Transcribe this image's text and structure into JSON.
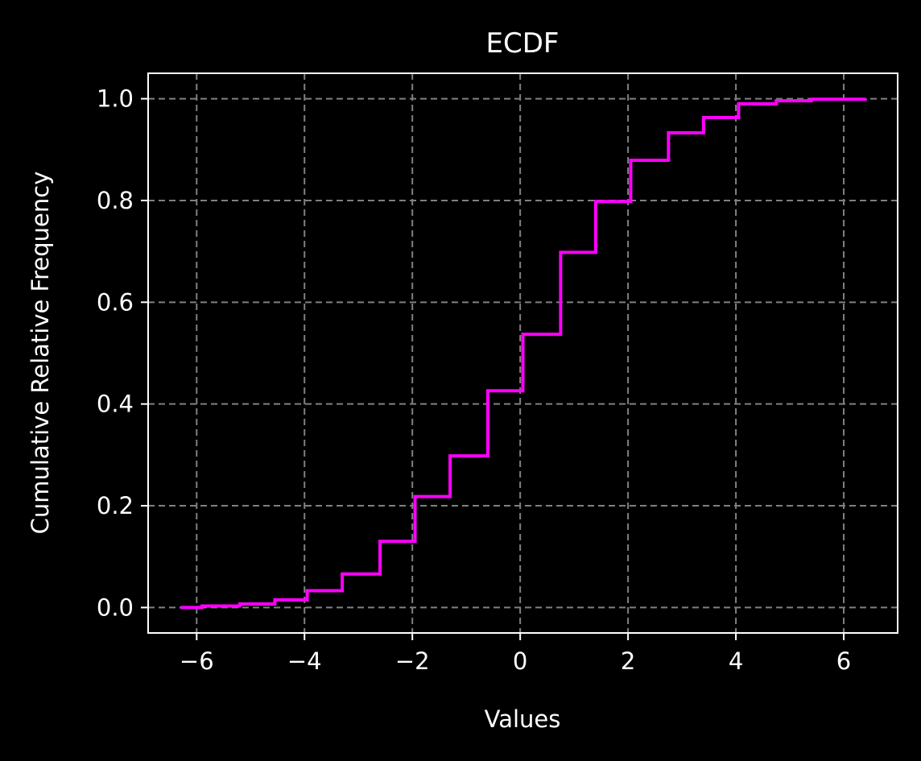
{
  "chart_data": {
    "type": "line",
    "subtype": "step",
    "title": "ECDF",
    "xlabel": "Values",
    "ylabel": "Cumulative Relative Frequency",
    "xlim": [
      -6.9,
      7.0
    ],
    "ylim": [
      -0.05,
      1.05
    ],
    "x_ticks": [
      -6,
      -4,
      -2,
      0,
      2,
      4,
      6
    ],
    "x_tick_labels": [
      "−6",
      "−4",
      "−2",
      "0",
      "2",
      "4",
      "6"
    ],
    "y_ticks": [
      0.0,
      0.2,
      0.4,
      0.6,
      0.8,
      1.0
    ],
    "y_tick_labels": [
      "0.0",
      "0.2",
      "0.4",
      "0.6",
      "0.8",
      "1.0"
    ],
    "grid": true,
    "line_color": "#ff00ff",
    "background_color": "#000000",
    "x": [
      -6.3,
      -5.9,
      -5.2,
      -4.55,
      -3.95,
      -3.3,
      -2.6,
      -1.95,
      -1.3,
      -0.6,
      0.05,
      0.75,
      1.4,
      2.05,
      2.75,
      3.4,
      4.05,
      4.75,
      5.4,
      6.4
    ],
    "y": [
      0.0,
      0.003,
      0.007,
      0.015,
      0.033,
      0.066,
      0.13,
      0.218,
      0.298,
      0.426,
      0.537,
      0.698,
      0.798,
      0.879,
      0.933,
      0.963,
      0.99,
      0.996,
      0.999,
      1.0
    ]
  }
}
